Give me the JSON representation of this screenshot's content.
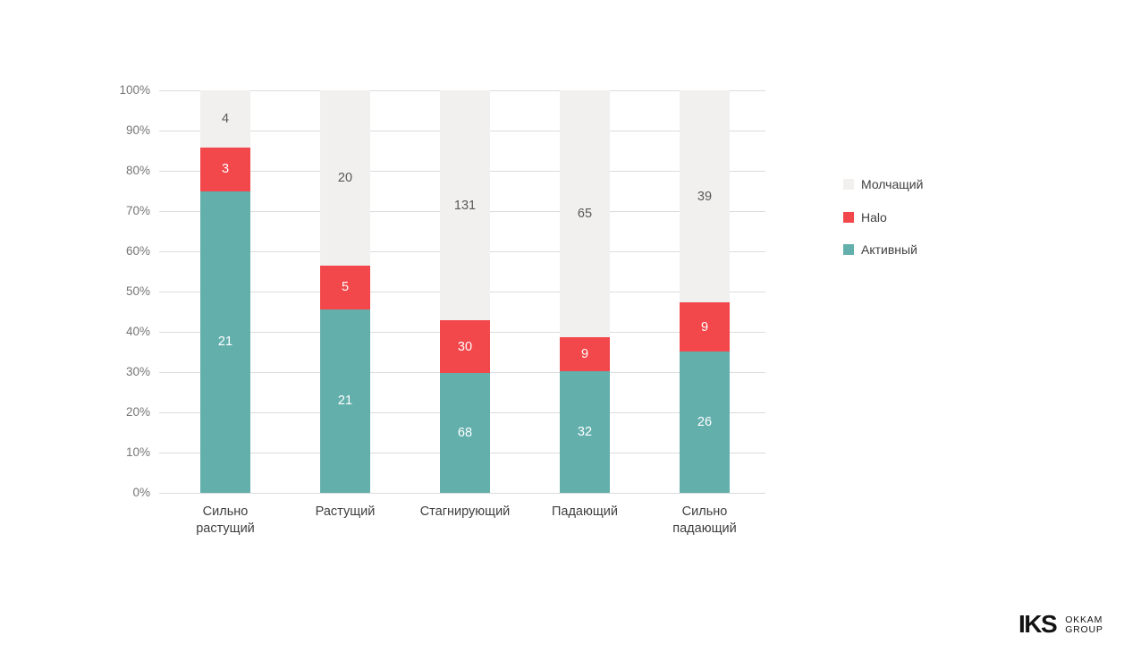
{
  "chart_data": {
    "type": "bar",
    "stacked": true,
    "percent_axis": true,
    "title": "",
    "xlabel": "",
    "ylabel": "",
    "categories": [
      "Сильно растущий",
      "Растущий",
      "Стагнирующий",
      "Падающий",
      "Сильно падающий"
    ],
    "series": [
      {
        "name": "Активный",
        "values": [
          21,
          21,
          68,
          32,
          26
        ],
        "color": "#63AFAC",
        "label_color": "#ffffff"
      },
      {
        "name": "Halo",
        "values": [
          3,
          5,
          30,
          9,
          9
        ],
        "color": "#F2474B",
        "label_color": "#ffffff"
      },
      {
        "name": "Молчащий",
        "values": [
          4,
          20,
          131,
          65,
          39
        ],
        "color": "#F1F0EF",
        "label_color": "#595959"
      }
    ],
    "y_axis": {
      "min": 0,
      "max": 100,
      "step": 10,
      "tick_labels": [
        "0%",
        "10%",
        "20%",
        "30%",
        "40%",
        "50%",
        "60%",
        "70%",
        "80%",
        "90%",
        "100%"
      ]
    },
    "legend": {
      "position": "right",
      "order_top_to_bottom": [
        "Молчащий",
        "Halo",
        "Активный"
      ]
    },
    "grid": true,
    "gridline_color": "#dcdcdc",
    "tick_label_color": "#757575",
    "category_label_color": "#3f3f3f"
  },
  "branding": {
    "logo_text": "IKS",
    "logo_subtext_line1": "OKKAM",
    "logo_subtext_line2": "GROUP"
  }
}
